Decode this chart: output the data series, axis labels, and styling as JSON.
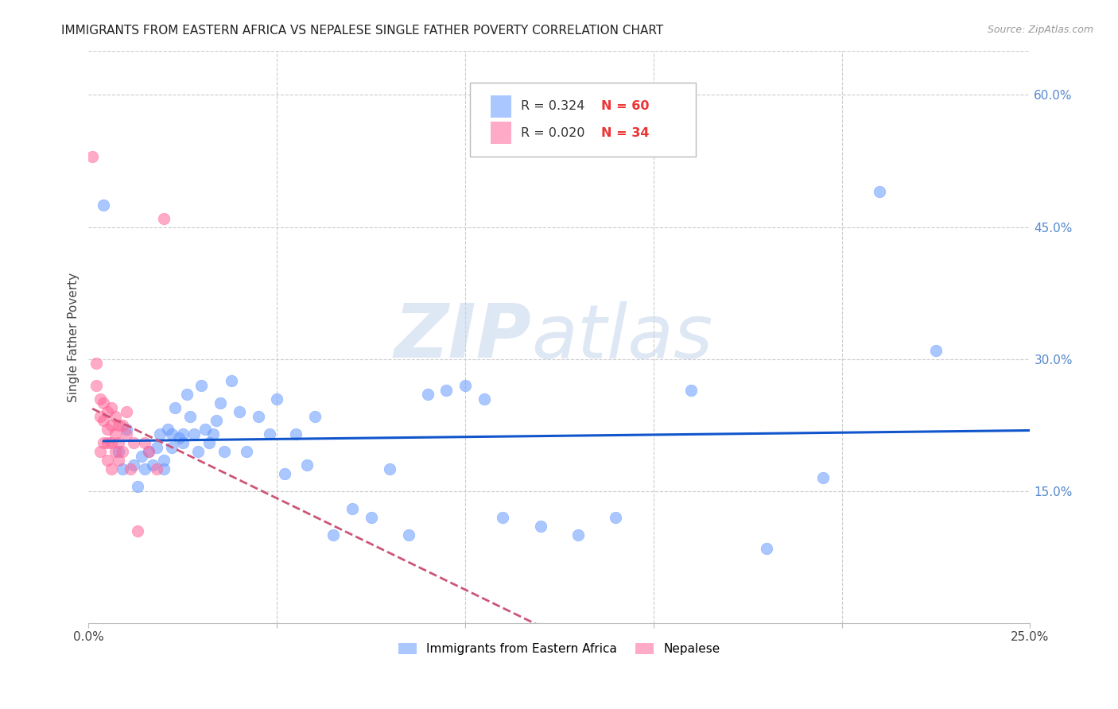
{
  "title": "IMMIGRANTS FROM EASTERN AFRICA VS NEPALESE SINGLE FATHER POVERTY CORRELATION CHART",
  "source": "Source: ZipAtlas.com",
  "ylabel": "Single Father Poverty",
  "watermark_zip": "ZIP",
  "watermark_atlas": "atlas",
  "xlim": [
    0.0,
    0.25
  ],
  "ylim": [
    0.0,
    0.65
  ],
  "xticks": [
    0.0,
    0.05,
    0.1,
    0.15,
    0.2,
    0.25
  ],
  "xtick_labels": [
    "0.0%",
    "",
    "",
    "",
    "",
    "25.0%"
  ],
  "yticks_right": [
    0.15,
    0.3,
    0.45,
    0.6
  ],
  "ytick_right_labels": [
    "15.0%",
    "30.0%",
    "45.0%",
    "60.0%"
  ],
  "blue_R": 0.324,
  "blue_N": 60,
  "pink_R": 0.02,
  "pink_N": 34,
  "blue_color": "#6699ff",
  "pink_color": "#ff6699",
  "blue_line_color": "#1155cc",
  "pink_line_color": "#cc5577",
  "blue_scatter_x": [
    0.004,
    0.008,
    0.009,
    0.01,
    0.012,
    0.013,
    0.014,
    0.015,
    0.016,
    0.017,
    0.018,
    0.019,
    0.02,
    0.02,
    0.021,
    0.022,
    0.022,
    0.023,
    0.024,
    0.025,
    0.025,
    0.026,
    0.027,
    0.028,
    0.029,
    0.03,
    0.031,
    0.032,
    0.033,
    0.034,
    0.035,
    0.036,
    0.038,
    0.04,
    0.042,
    0.045,
    0.048,
    0.05,
    0.052,
    0.055,
    0.058,
    0.06,
    0.065,
    0.07,
    0.075,
    0.08,
    0.085,
    0.09,
    0.095,
    0.1,
    0.105,
    0.11,
    0.12,
    0.13,
    0.14,
    0.16,
    0.18,
    0.195,
    0.21,
    0.225
  ],
  "blue_scatter_y": [
    0.475,
    0.195,
    0.175,
    0.22,
    0.18,
    0.155,
    0.19,
    0.175,
    0.195,
    0.18,
    0.2,
    0.215,
    0.185,
    0.175,
    0.22,
    0.2,
    0.215,
    0.245,
    0.21,
    0.215,
    0.205,
    0.26,
    0.235,
    0.215,
    0.195,
    0.27,
    0.22,
    0.205,
    0.215,
    0.23,
    0.25,
    0.195,
    0.275,
    0.24,
    0.195,
    0.235,
    0.215,
    0.255,
    0.17,
    0.215,
    0.18,
    0.235,
    0.1,
    0.13,
    0.12,
    0.175,
    0.1,
    0.26,
    0.265,
    0.27,
    0.255,
    0.12,
    0.11,
    0.1,
    0.12,
    0.265,
    0.085,
    0.165,
    0.49,
    0.31
  ],
  "pink_scatter_x": [
    0.001,
    0.002,
    0.002,
    0.003,
    0.003,
    0.003,
    0.004,
    0.004,
    0.004,
    0.005,
    0.005,
    0.005,
    0.005,
    0.006,
    0.006,
    0.006,
    0.006,
    0.007,
    0.007,
    0.007,
    0.008,
    0.008,
    0.008,
    0.009,
    0.009,
    0.01,
    0.01,
    0.011,
    0.012,
    0.013,
    0.015,
    0.016,
    0.018,
    0.02
  ],
  "pink_scatter_y": [
    0.53,
    0.295,
    0.27,
    0.255,
    0.235,
    0.195,
    0.25,
    0.23,
    0.205,
    0.24,
    0.22,
    0.205,
    0.185,
    0.245,
    0.225,
    0.205,
    0.175,
    0.235,
    0.215,
    0.195,
    0.225,
    0.205,
    0.185,
    0.225,
    0.195,
    0.24,
    0.215,
    0.175,
    0.205,
    0.105,
    0.205,
    0.195,
    0.175,
    0.46
  ],
  "grid_color": "#cccccc",
  "background_color": "#ffffff",
  "title_fontsize": 11,
  "axis_label_color": "#5588cc"
}
